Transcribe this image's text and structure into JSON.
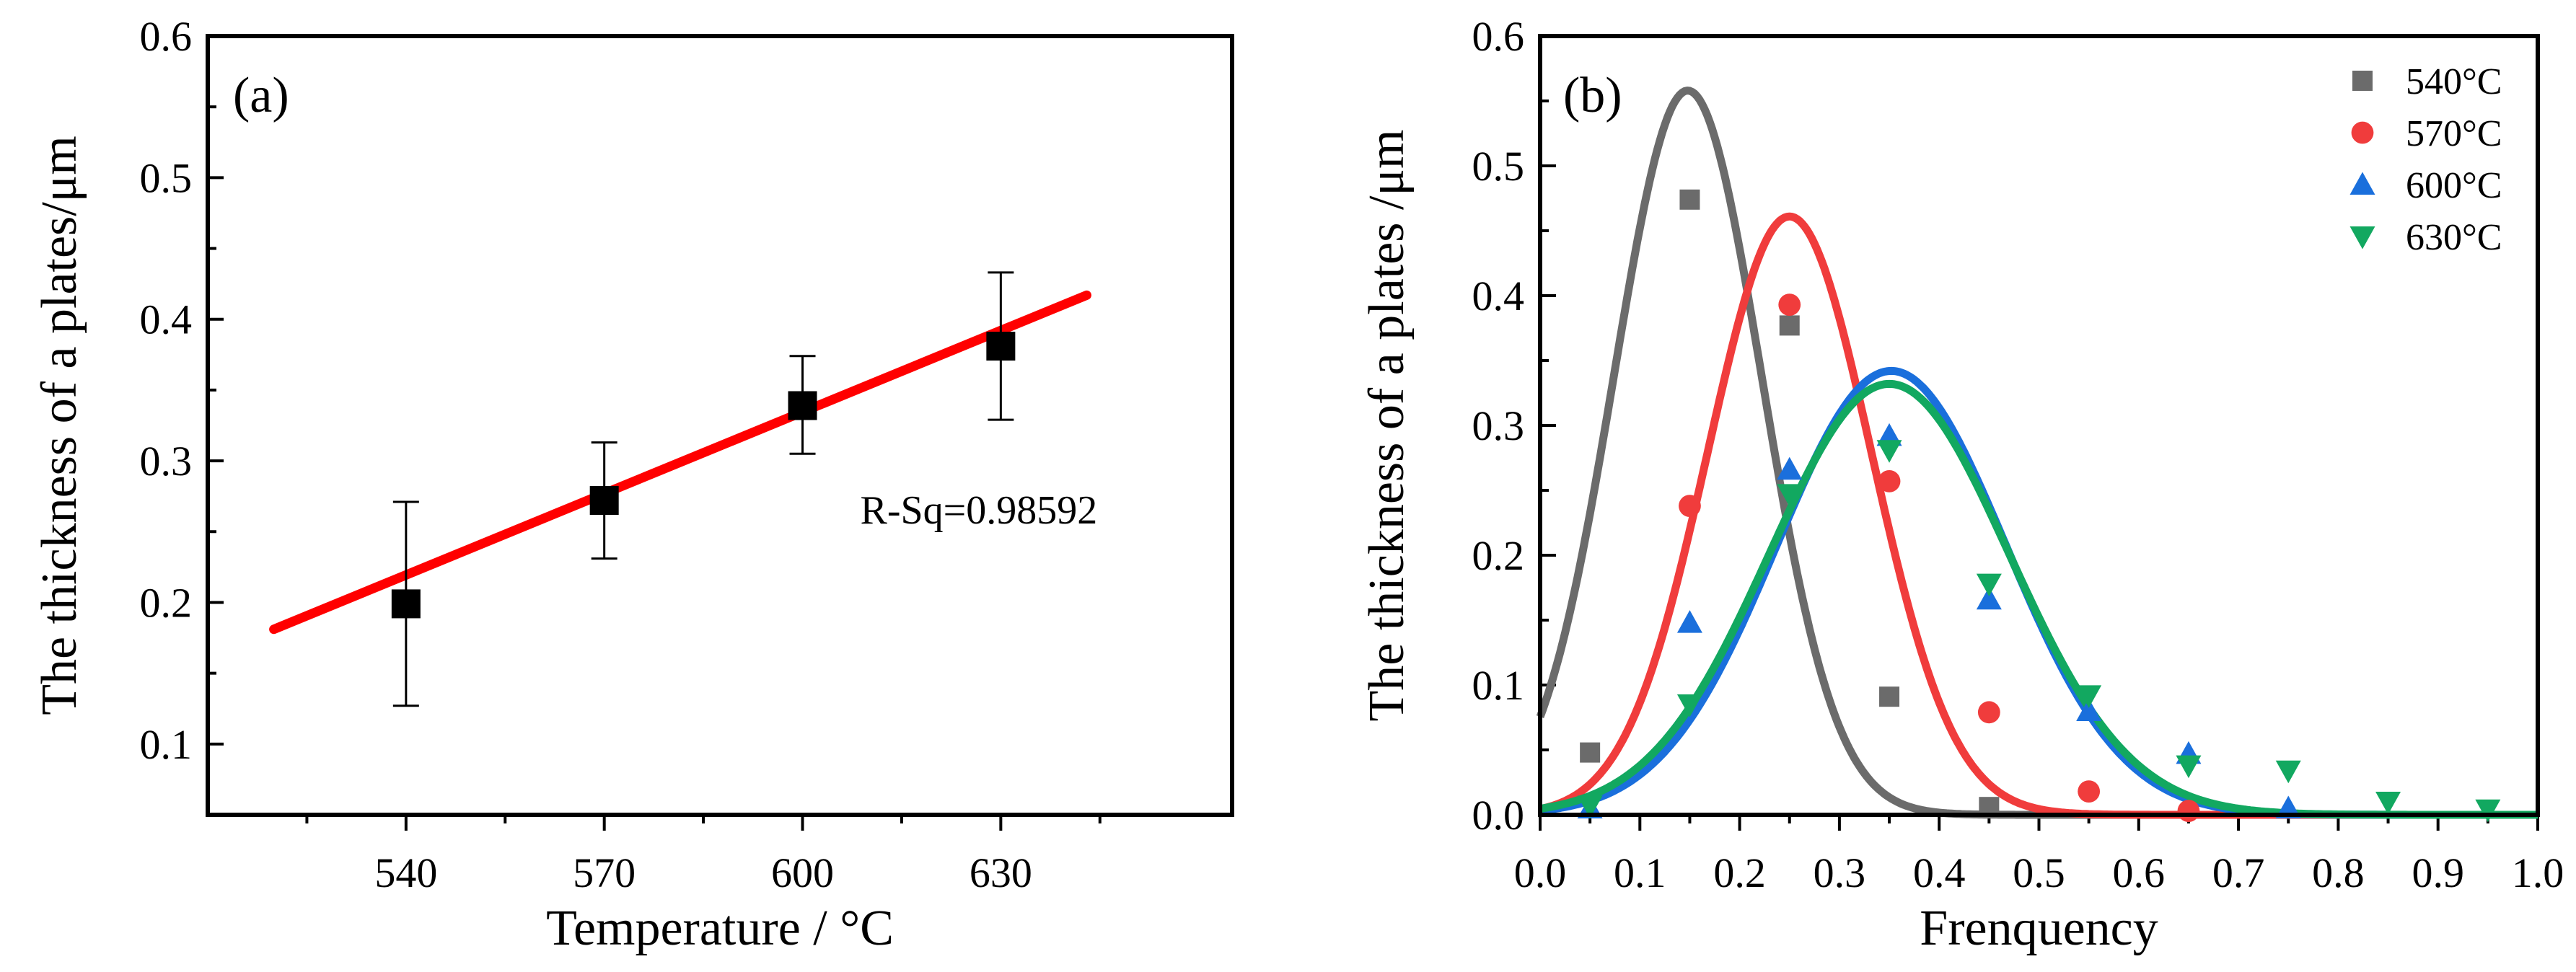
{
  "chart_data": [
    {
      "panel": "(a)",
      "type": "scatter",
      "xlabel": "Temperature / °C",
      "ylabel": "The thickness of a plates/μm",
      "xlim": [
        510,
        665
      ],
      "ylim": [
        0.05,
        0.6
      ],
      "xticks": [
        540,
        570,
        600,
        630
      ],
      "xtick_labels": [
        "540",
        "570",
        "600",
        "630"
      ],
      "yticks": [
        0.1,
        0.2,
        0.3,
        0.4,
        0.5,
        0.6
      ],
      "ytick_labels": [
        "0.1",
        "0.2",
        "0.3",
        "0.4",
        "0.5",
        "0.6"
      ],
      "points": [
        {
          "x": 540,
          "y": 0.199,
          "err_low": 0.127,
          "err_high": 0.271
        },
        {
          "x": 570,
          "y": 0.272,
          "err_low": 0.231,
          "err_high": 0.313
        },
        {
          "x": 600,
          "y": 0.339,
          "err_low": 0.305,
          "err_high": 0.374
        },
        {
          "x": 630,
          "y": 0.381,
          "err_low": 0.329,
          "err_high": 0.433
        }
      ],
      "fit_line": {
        "x": [
          520,
          643
        ],
        "y": [
          0.181,
          0.417
        ],
        "color": "#ff0000"
      },
      "annotation": "R-Sq=0.98592",
      "annotation_pos": {
        "x": 627,
        "y": 0.266
      }
    },
    {
      "panel": "(b)",
      "type": "scatter",
      "xlabel": "Frenquency",
      "ylabel": "The thickness of a plates /μm",
      "xlim": [
        0,
        1
      ],
      "ylim": [
        0,
        0.6
      ],
      "xticks": [
        0,
        0.1,
        0.2,
        0.3,
        0.4,
        0.5,
        0.6,
        0.7,
        0.8,
        0.9,
        1.0
      ],
      "xtick_labels": [
        "0.0",
        "0.1",
        "0.2",
        "0.3",
        "0.4",
        "0.5",
        "0.6",
        "0.7",
        "0.8",
        "0.9",
        "1.0"
      ],
      "yticks": [
        0,
        0.1,
        0.2,
        0.3,
        0.4,
        0.5,
        0.6
      ],
      "ytick_labels": [
        "0.0",
        "0.1",
        "0.2",
        "0.3",
        "0.4",
        "0.5",
        "0.6"
      ],
      "legend_position": "top-right",
      "series": [
        {
          "name": "540°C",
          "marker": "square",
          "color": "#6b6b6b",
          "x": [
            0.05,
            0.15,
            0.25,
            0.35,
            0.45
          ],
          "y": [
            0.048,
            0.474,
            0.377,
            0.091,
            0.006
          ],
          "fit": {
            "peak": 0.558,
            "center": 0.148,
            "sigma": 0.074
          }
        },
        {
          "name": "570°C",
          "marker": "circle",
          "color": "#f03c3c",
          "x": [
            0.15,
            0.25,
            0.35,
            0.45,
            0.55,
            0.65
          ],
          "y": [
            0.238,
            0.393,
            0.257,
            0.079,
            0.018,
            0.003
          ],
          "fit": {
            "peak": 0.461,
            "center": 0.25,
            "sigma": 0.082
          }
        },
        {
          "name": "600°C",
          "marker": "triangle-up",
          "color": "#1a6fdc",
          "x": [
            0.05,
            0.15,
            0.25,
            0.35,
            0.45,
            0.55,
            0.65,
            0.75
          ],
          "y": [
            0.005,
            0.148,
            0.266,
            0.292,
            0.166,
            0.08,
            0.047,
            0.005
          ],
          "fit": {
            "peak": 0.342,
            "center": 0.352,
            "sigma": 0.115
          }
        },
        {
          "name": "630°C",
          "marker": "triangle-down",
          "color": "#12a860",
          "x": [
            0.05,
            0.15,
            0.25,
            0.35,
            0.45,
            0.55,
            0.65,
            0.75,
            0.85,
            0.95
          ],
          "y": [
            0.007,
            0.085,
            0.247,
            0.281,
            0.178,
            0.092,
            0.038,
            0.034,
            0.01,
            0.004
          ],
          "fit": {
            "peak": 0.332,
            "center": 0.35,
            "sigma": 0.12
          }
        }
      ]
    }
  ]
}
